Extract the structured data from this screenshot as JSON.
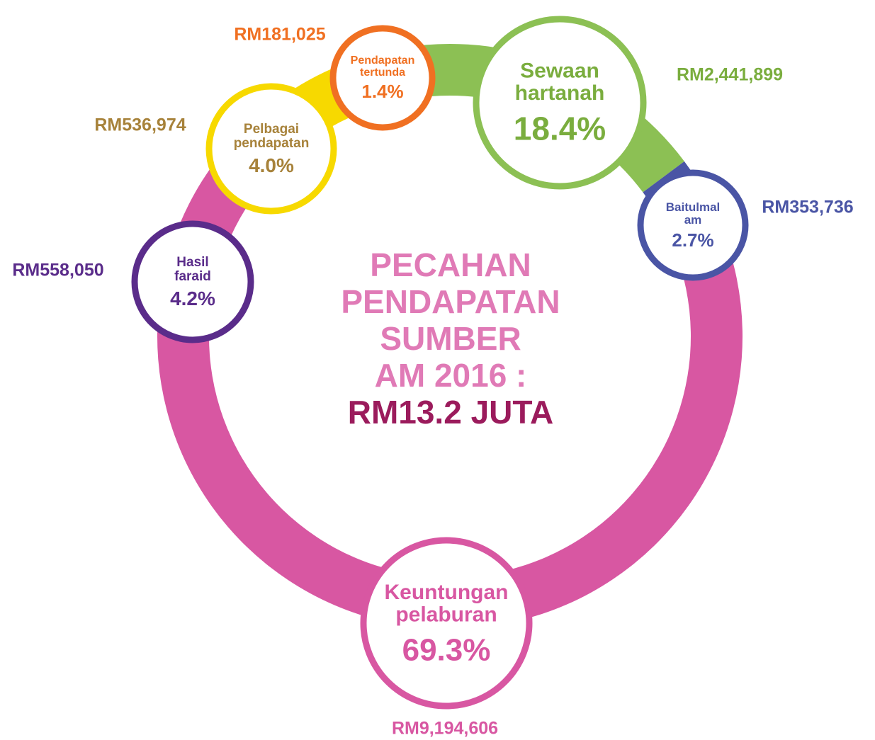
{
  "chart_data": {
    "type": "donut",
    "title": [
      "PECAHAN",
      "PENDAPATAN",
      "SUMBER",
      "AM 2016 :"
    ],
    "subtitle": "RM13.2 JUTA",
    "categories": [
      [
        "Sewaan",
        "hartanah"
      ],
      [
        "Baitulmal",
        "am"
      ],
      [
        "Keuntungan",
        "pelaburan"
      ],
      [
        "Hasil",
        "faraid"
      ],
      [
        "Pelbagai",
        "pendapatan"
      ],
      [
        "Pendapatan",
        "tertunda"
      ]
    ],
    "values": [
      18.4,
      2.7,
      69.3,
      4.2,
      4.0,
      1.4
    ],
    "value_labels": [
      "18.4%",
      "2.7%",
      "69.3%",
      "4.2%",
      "4.0%",
      "1.4%"
    ],
    "amount_labels": [
      "RM2,441,899",
      "RM353,736",
      "RM9,194,606",
      "RM558,050",
      "RM536,974",
      "RM181,025"
    ],
    "colors": [
      "#8cc054",
      "#4a55a5",
      "#d857a2",
      "#5a2c8a",
      "#f7d900",
      "#f07022"
    ],
    "text_colors": [
      "#7aad3e",
      "#4a55a5",
      "#d857a2",
      "#5a2c8a",
      "#a7823a",
      "#f07022"
    ]
  }
}
